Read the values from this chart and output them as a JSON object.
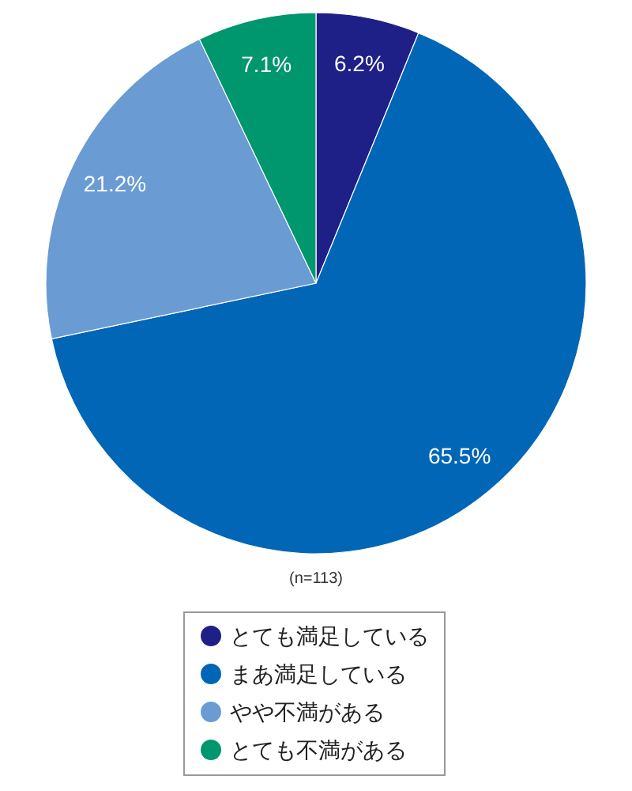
{
  "chart_data": {
    "type": "pie",
    "categories": [
      "とても満足している",
      "まあ満足している",
      "やや不満がある",
      "とても不満がある"
    ],
    "values": [
      6.2,
      65.5,
      21.2,
      7.1
    ],
    "colors": [
      "#1f1f88",
      "#0066b5",
      "#6a9bd3",
      "#00966e"
    ],
    "value_labels": [
      "6.2%",
      "65.5%",
      "21.2%",
      "7.1%"
    ],
    "annotations": [
      "(n=113)"
    ],
    "legend": "bottom"
  }
}
